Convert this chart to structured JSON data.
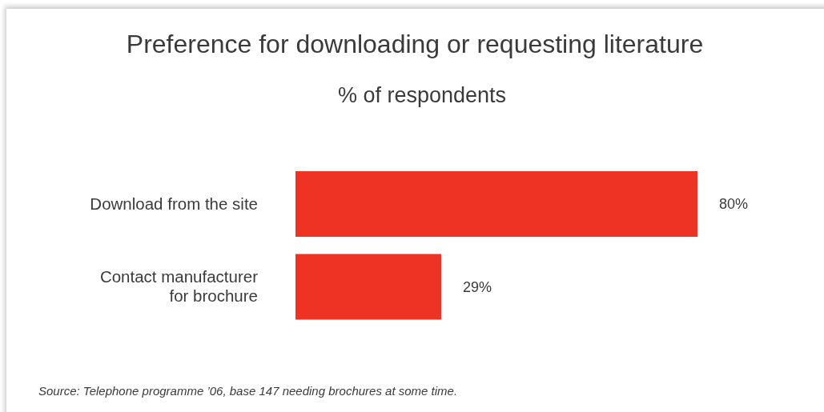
{
  "chart_data": {
    "type": "bar",
    "orientation": "horizontal",
    "title": "Preference for downloading or requesting literature",
    "subtitle": "% of respondents",
    "categories": [
      "Download from the site",
      "Contact manufacturer for brochure"
    ],
    "values": [
      80,
      29
    ],
    "value_labels": [
      "80%",
      "29%"
    ],
    "color": "#ee3224",
    "tick_labels": "y",
    "annotations": [
      "Source: Telephone programme ’06, base 147 needing brochures at some time."
    ]
  }
}
